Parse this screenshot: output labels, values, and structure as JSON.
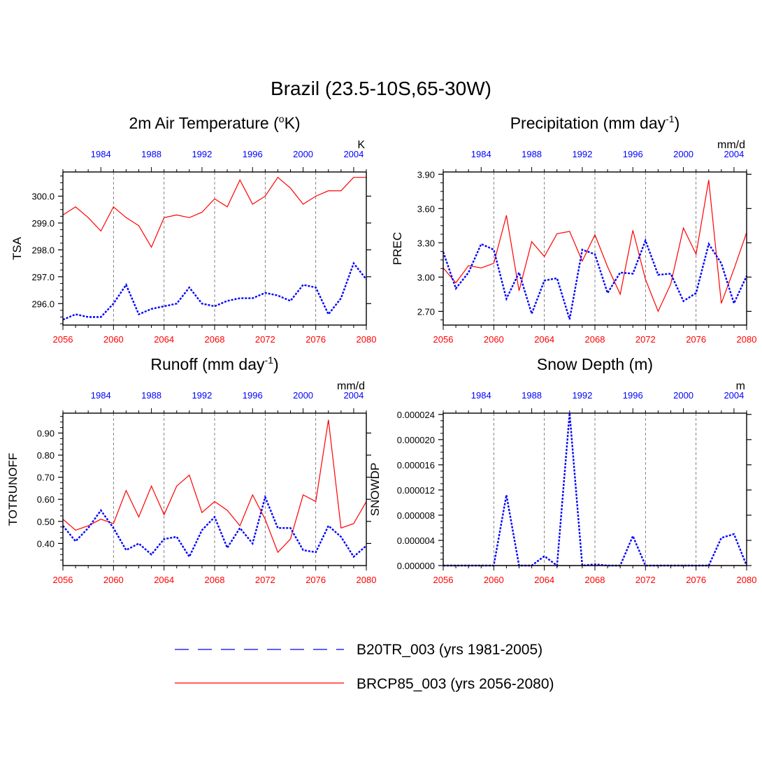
{
  "figure": {
    "title": "Brazil (23.5-10S,65-30W)",
    "colors": {
      "future": "#ff0000",
      "hist": "#0000ff",
      "axis": "#000000",
      "grid": "#666666"
    }
  },
  "legend": {
    "items": [
      {
        "label": "B20TR_003 (yrs 1981-2005)",
        "color": "#0000ff",
        "dash": "long-dash"
      },
      {
        "label": "BRCP85_003 (yrs 2056-2080)",
        "color": "#ff0000",
        "dash": "solid"
      }
    ]
  },
  "chart_data": [
    {
      "type": "line",
      "title": "2m Air Temperature (",
      "title_sup": "o",
      "title_tail": "K)",
      "ylabel": "TSA",
      "units": "K",
      "x_bottom": {
        "range": [
          2056,
          2080
        ],
        "ticks": [
          "2056",
          "2060",
          "2064",
          "2068",
          "2072",
          "2076",
          "2080"
        ],
        "color": "#ff0000"
      },
      "x_top": {
        "range": [
          1981,
          2005
        ],
        "ticks": [
          "1984",
          "1988",
          "1992",
          "1996",
          "2000",
          "2004"
        ],
        "color": "#0000ff"
      },
      "ylim": [
        295.2,
        300.9
      ],
      "yticks": [
        296.0,
        297.0,
        298.0,
        299.0,
        300.0
      ],
      "ytick_labels": [
        "296.0",
        "297.0",
        "298.0",
        "299.0",
        "300.0"
      ],
      "grid_x": [
        2060,
        2064,
        2068,
        2072,
        2076
      ],
      "series": [
        {
          "name": "BRCP85_003 (yrs 2056-2080)",
          "color": "#ff0000",
          "style": "solid",
          "x": [
            2056,
            2057,
            2058,
            2059,
            2060,
            2061,
            2062,
            2063,
            2064,
            2065,
            2066,
            2067,
            2068,
            2069,
            2070,
            2071,
            2072,
            2073,
            2074,
            2075,
            2076,
            2077,
            2078,
            2079,
            2080
          ],
          "values": [
            299.3,
            299.6,
            299.2,
            298.7,
            299.6,
            299.2,
            298.9,
            298.1,
            299.2,
            299.3,
            299.2,
            299.4,
            299.9,
            299.6,
            300.6,
            299.7,
            300.0,
            300.7,
            300.3,
            299.7,
            300.0,
            300.2,
            300.2,
            300.7,
            300.7
          ]
        },
        {
          "name": "B20TR_003 (yrs 1981-2005)",
          "color": "#0000ff",
          "style": "dotted",
          "x": [
            1981,
            1982,
            1983,
            1984,
            1985,
            1986,
            1987,
            1988,
            1989,
            1990,
            1991,
            1992,
            1993,
            1994,
            1995,
            1996,
            1997,
            1998,
            1999,
            2000,
            2001,
            2002,
            2003,
            2004,
            2005
          ],
          "values": [
            295.4,
            295.6,
            295.5,
            295.5,
            296.0,
            296.7,
            295.6,
            295.8,
            295.9,
            296.0,
            296.6,
            296.0,
            295.9,
            296.1,
            296.2,
            296.2,
            296.4,
            296.3,
            296.1,
            296.7,
            296.6,
            295.6,
            296.2,
            297.5,
            296.9
          ]
        }
      ]
    },
    {
      "type": "line",
      "title": "Precipitation (mm day",
      "title_sup": "-1",
      "title_tail": ")",
      "ylabel": "PREC",
      "units": "mm/d",
      "x_bottom": {
        "range": [
          2056,
          2080
        ],
        "ticks": [
          "2056",
          "2060",
          "2064",
          "2068",
          "2072",
          "2076",
          "2080"
        ],
        "color": "#ff0000"
      },
      "x_top": {
        "range": [
          1981,
          2005
        ],
        "ticks": [
          "1984",
          "1988",
          "1992",
          "1996",
          "2000",
          "2004"
        ],
        "color": "#0000ff"
      },
      "ylim": [
        2.58,
        3.92
      ],
      "yticks": [
        2.7,
        3.0,
        3.3,
        3.6,
        3.9
      ],
      "ytick_labels": [
        "2.70",
        "3.00",
        "3.30",
        "3.60",
        "3.90"
      ],
      "grid_x": [
        2060,
        2064,
        2068,
        2072,
        2076
      ],
      "series": [
        {
          "name": "BRCP85_003 (yrs 2056-2080)",
          "color": "#ff0000",
          "style": "solid",
          "x": [
            2056,
            2057,
            2058,
            2059,
            2060,
            2061,
            2062,
            2063,
            2064,
            2065,
            2066,
            2067,
            2068,
            2069,
            2070,
            2071,
            2072,
            2073,
            2074,
            2075,
            2076,
            2077,
            2078,
            2079,
            2080
          ],
          "values": [
            3.08,
            2.95,
            3.1,
            3.08,
            3.12,
            3.54,
            2.88,
            3.31,
            3.18,
            3.38,
            3.4,
            3.14,
            3.37,
            3.09,
            2.85,
            3.41,
            2.98,
            2.7,
            2.94,
            3.43,
            3.2,
            3.85,
            2.77,
            3.07,
            3.39
          ]
        },
        {
          "name": "B20TR_003 (yrs 1981-2005)",
          "color": "#0000ff",
          "style": "dotted",
          "x": [
            1981,
            1982,
            1983,
            1984,
            1985,
            1986,
            1987,
            1988,
            1989,
            1990,
            1991,
            1992,
            1993,
            1994,
            1995,
            1996,
            1997,
            1998,
            1999,
            2000,
            2001,
            2002,
            2003,
            2004,
            2005
          ],
          "values": [
            3.22,
            2.9,
            3.04,
            3.29,
            3.24,
            2.81,
            3.04,
            2.68,
            2.97,
            2.99,
            2.63,
            3.24,
            3.2,
            2.86,
            3.04,
            3.03,
            3.32,
            3.02,
            3.03,
            2.79,
            2.86,
            3.29,
            3.12,
            2.77,
            3.01
          ]
        }
      ]
    },
    {
      "type": "line",
      "title": "Runoff (mm day",
      "title_sup": "-1",
      "title_tail": ")",
      "ylabel": "TOTRUNOFF",
      "units": "mm/d",
      "x_bottom": {
        "range": [
          2056,
          2080
        ],
        "ticks": [
          "2056",
          "2060",
          "2064",
          "2068",
          "2072",
          "2076",
          "2080"
        ],
        "color": "#ff0000"
      },
      "x_top": {
        "range": [
          1981,
          2005
        ],
        "ticks": [
          "1984",
          "1988",
          "1992",
          "1996",
          "2000",
          "2004"
        ],
        "color": "#0000ff"
      },
      "ylim": [
        0.3,
        0.99
      ],
      "yticks": [
        0.4,
        0.5,
        0.6,
        0.7,
        0.8,
        0.9
      ],
      "ytick_labels": [
        "0.40",
        "0.50",
        "0.60",
        "0.70",
        "0.80",
        "0.90"
      ],
      "grid_x": [
        2060,
        2064,
        2068,
        2072,
        2076
      ],
      "series": [
        {
          "name": "BRCP85_003 (yrs 2056-2080)",
          "color": "#ff0000",
          "style": "solid",
          "x": [
            2056,
            2057,
            2058,
            2059,
            2060,
            2061,
            2062,
            2063,
            2064,
            2065,
            2066,
            2067,
            2068,
            2069,
            2070,
            2071,
            2072,
            2073,
            2074,
            2075,
            2076,
            2077,
            2078,
            2079,
            2080
          ],
          "values": [
            0.51,
            0.46,
            0.48,
            0.51,
            0.49,
            0.64,
            0.52,
            0.66,
            0.53,
            0.66,
            0.71,
            0.54,
            0.59,
            0.55,
            0.48,
            0.62,
            0.51,
            0.36,
            0.42,
            0.62,
            0.59,
            0.96,
            0.47,
            0.49,
            0.59
          ]
        },
        {
          "name": "B20TR_003 (yrs 1981-2005)",
          "color": "#0000ff",
          "style": "dotted",
          "x": [
            1981,
            1982,
            1983,
            1984,
            1985,
            1986,
            1987,
            1988,
            1989,
            1990,
            1991,
            1992,
            1993,
            1994,
            1995,
            1996,
            1997,
            1998,
            1999,
            2000,
            2001,
            2002,
            2003,
            2004,
            2005
          ],
          "values": [
            0.48,
            0.41,
            0.47,
            0.55,
            0.47,
            0.37,
            0.4,
            0.35,
            0.42,
            0.43,
            0.34,
            0.46,
            0.52,
            0.38,
            0.47,
            0.4,
            0.61,
            0.47,
            0.47,
            0.37,
            0.36,
            0.48,
            0.43,
            0.34,
            0.39
          ]
        }
      ]
    },
    {
      "type": "line",
      "title": "Snow Depth (m)",
      "title_sup": "",
      "title_tail": "",
      "ylabel": "SNOWDP",
      "units": "m",
      "x_bottom": {
        "range": [
          2056,
          2080
        ],
        "ticks": [
          "2056",
          "2060",
          "2064",
          "2068",
          "2072",
          "2076",
          "2080"
        ],
        "color": "#ff0000"
      },
      "x_top": {
        "range": [
          1981,
          2005
        ],
        "ticks": [
          "1984",
          "1988",
          "1992",
          "1996",
          "2000",
          "2004"
        ],
        "color": "#0000ff"
      },
      "ylim": [
        0.0,
        2.42e-05
      ],
      "yticks": [
        0.0,
        4e-06,
        8e-06,
        1.2e-05,
        1.6e-05,
        2e-05,
        2.4e-05
      ],
      "ytick_labels": [
        "0.000000",
        "0.000004",
        "0.000008",
        "0.000012",
        "0.000016",
        "0.000020",
        "0.000024"
      ],
      "grid_x": [
        2060,
        2064,
        2068,
        2072,
        2076
      ],
      "series": [
        {
          "name": "BRCP85_003 (yrs 2056-2080)",
          "color": "#ff0000",
          "style": "solid",
          "x": [
            2056,
            2080
          ],
          "values": [
            0.0,
            0.0
          ]
        },
        {
          "name": "B20TR_003 (yrs 1981-2005)",
          "color": "#0000ff",
          "style": "dotted",
          "x": [
            1981,
            1982,
            1983,
            1984,
            1985,
            1986,
            1987,
            1988,
            1989,
            1990,
            1991,
            1992,
            1993,
            1994,
            1995,
            1996,
            1997,
            1998,
            1999,
            2000,
            2001,
            2002,
            2003,
            2004,
            2005
          ],
          "values": [
            0,
            0,
            0,
            0,
            0,
            1.12e-05,
            0,
            0,
            1.5e-06,
            0,
            2.42e-05,
            0,
            2e-07,
            0,
            0,
            4.7e-06,
            0,
            0,
            0,
            0,
            0,
            0,
            4.4e-06,
            5e-06,
            0
          ]
        }
      ]
    }
  ]
}
